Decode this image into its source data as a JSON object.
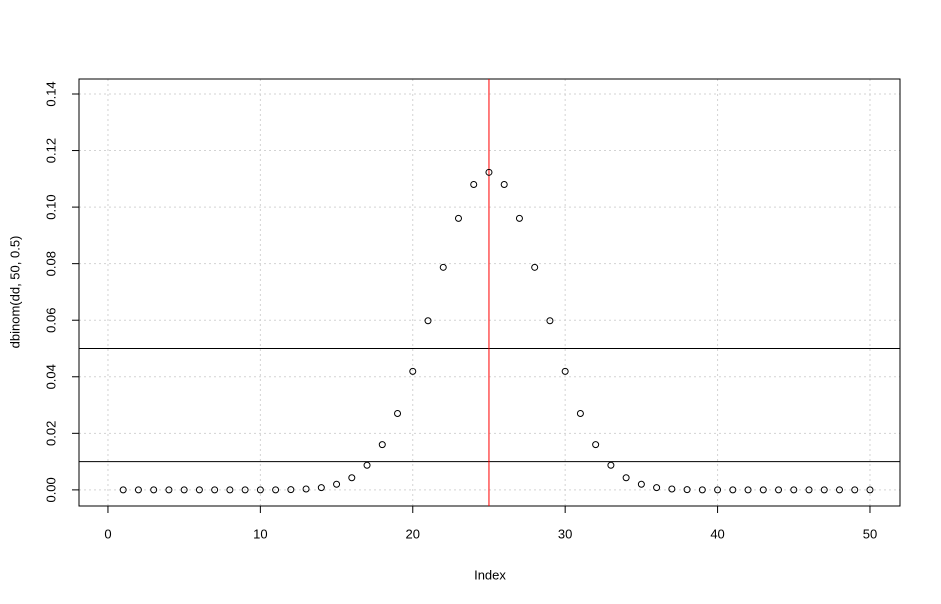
{
  "chart_data": {
    "type": "scatter",
    "x_label": "Index",
    "y_label": "dbinom(dd, 50, 0.5)",
    "x": [
      1,
      2,
      3,
      4,
      5,
      6,
      7,
      8,
      9,
      10,
      11,
      12,
      13,
      14,
      15,
      16,
      17,
      18,
      19,
      20,
      21,
      22,
      23,
      24,
      25,
      26,
      27,
      28,
      29,
      30,
      31,
      32,
      33,
      34,
      35,
      36,
      37,
      38,
      39,
      40,
      41,
      42,
      43,
      44,
      45,
      46,
      47,
      48,
      49,
      50
    ],
    "values": [
      0,
      0,
      0,
      0,
      0,
      0,
      0,
      0,
      0,
      0,
      0,
      0.0001,
      0.0003,
      0.0008,
      0.002,
      0.0043,
      0.0087,
      0.016,
      0.027,
      0.0419,
      0.0598,
      0.0787,
      0.096,
      0.108,
      0.1123,
      0.108,
      0.096,
      0.0787,
      0.0598,
      0.0419,
      0.027,
      0.016,
      0.0087,
      0.0043,
      0.002,
      0.0008,
      0.0003,
      0.0001,
      0,
      0,
      0,
      0,
      0,
      0,
      0,
      0,
      0,
      0,
      0,
      0
    ],
    "color": "#000000",
    "xlim": [
      -1.9,
      51.97
    ],
    "ylim": [
      -0.0057,
      0.1453
    ],
    "xticks": [
      0,
      10,
      20,
      30,
      40,
      50
    ],
    "yticks": [
      {
        "value": 0,
        "label": "0.00"
      },
      {
        "value": 0.02,
        "label": "0.02"
      },
      {
        "value": 0.04,
        "label": "0.04"
      },
      {
        "value": 0.06,
        "label": "0.06"
      },
      {
        "value": 0.08,
        "label": "0.08"
      },
      {
        "value": 0.1,
        "label": "0.10"
      },
      {
        "value": 0.12,
        "label": "0.12"
      },
      {
        "value": 0.14,
        "label": "0.14"
      }
    ],
    "grid": true,
    "hlines": [
      {
        "value": 0.05,
        "color": "#000000"
      },
      {
        "value": 0.01,
        "color": "#000000"
      }
    ],
    "vlines": [
      {
        "value": 25,
        "color": "#ff0000"
      }
    ]
  }
}
